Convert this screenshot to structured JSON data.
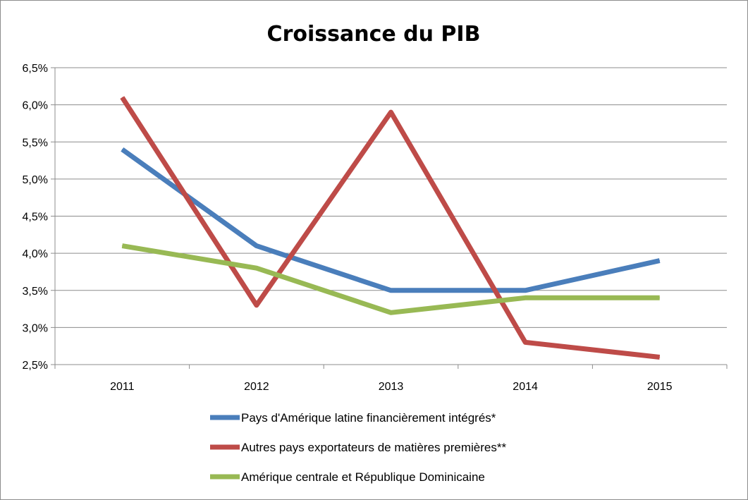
{
  "chart_data": {
    "type": "line",
    "title": "Croissance du PIB",
    "categories": [
      "2011",
      "2012",
      "2013",
      "2014",
      "2015"
    ],
    "ylim": [
      2.5,
      6.5
    ],
    "yticks": [
      2.5,
      3.0,
      3.5,
      4.0,
      4.5,
      5.0,
      5.5,
      6.0,
      6.5
    ],
    "ytick_labels": [
      "2,5%",
      "3,0%",
      "3,5%",
      "4,0%",
      "4,5%",
      "5,0%",
      "5,5%",
      "6,0%",
      "6,5%"
    ],
    "grid": true,
    "legend_position": "bottom",
    "series": [
      {
        "name": "Pays d'Amérique latine financièrement intégrés*",
        "color": "#4a7ebb",
        "values": [
          5.4,
          4.1,
          3.5,
          3.5,
          3.9
        ]
      },
      {
        "name": "Autres pays exportateurs de matières premières**",
        "color": "#be4b48",
        "values": [
          6.1,
          3.3,
          5.9,
          2.8,
          2.6
        ]
      },
      {
        "name": "Amérique centrale et République Dominicaine",
        "color": "#98b954",
        "values": [
          4.1,
          3.8,
          3.2,
          3.4,
          3.4
        ]
      }
    ]
  }
}
